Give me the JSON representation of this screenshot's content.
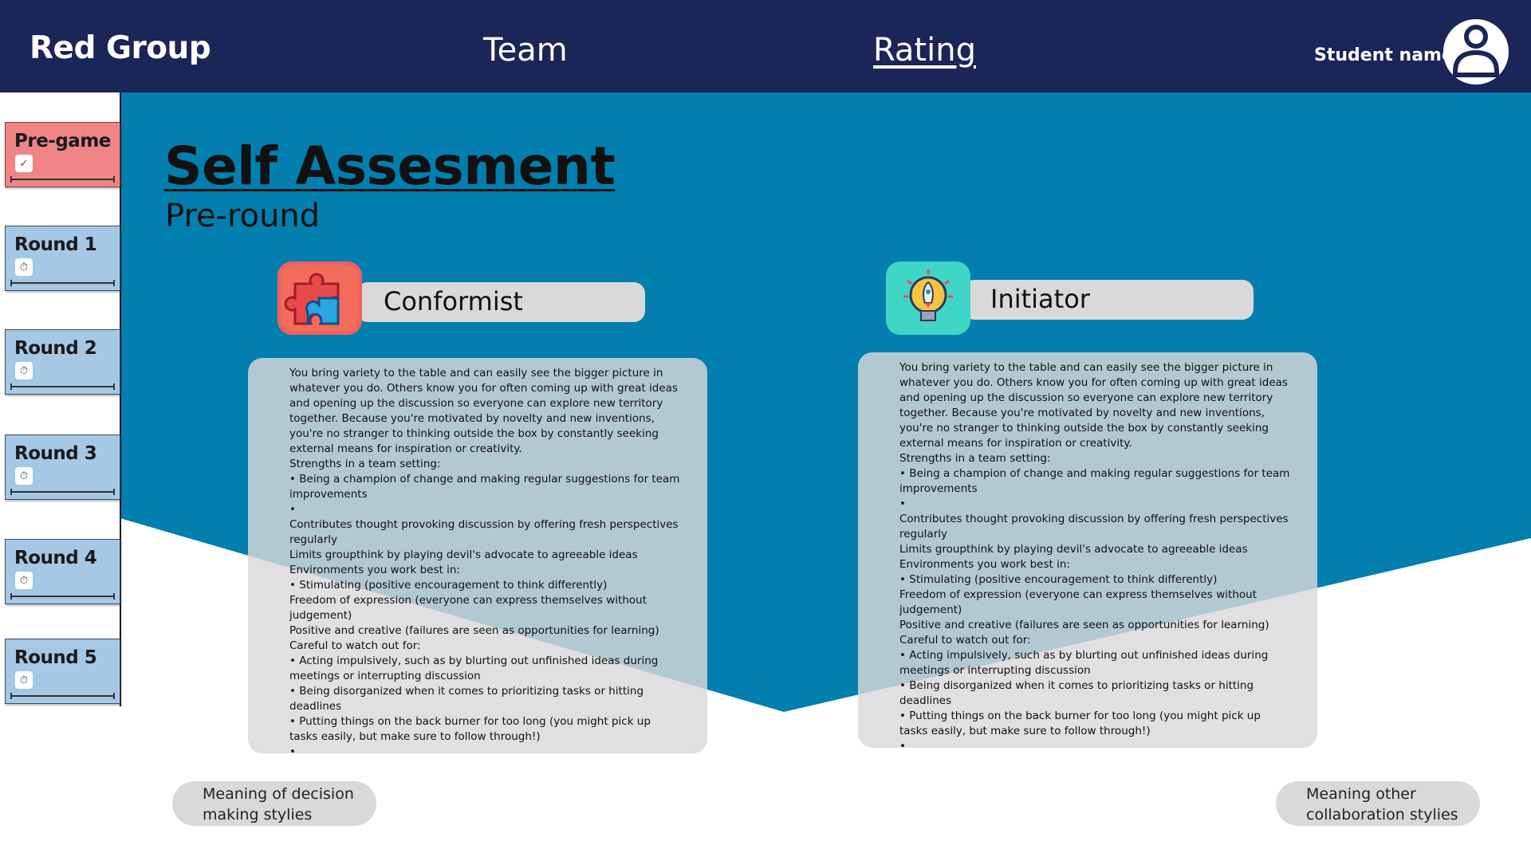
{
  "header": {
    "brand": "Red Group",
    "nav": [
      {
        "label": "Team"
      },
      {
        "label": "Rating"
      }
    ],
    "student_name": "Student name",
    "avatar_icon": "user-circle-icon"
  },
  "sidebar": {
    "items": [
      {
        "label": "Pre-game",
        "icon": "check-icon",
        "active": true
      },
      {
        "label": "Round 1",
        "icon": "timer-icon"
      },
      {
        "label": "Round 2",
        "icon": "timer-icon"
      },
      {
        "label": "Round 3",
        "icon": "timer-icon"
      },
      {
        "label": "Round 4",
        "icon": "timer-icon"
      },
      {
        "label": "Round 5",
        "icon": "timer-icon"
      }
    ]
  },
  "main": {
    "title": "Self Assesment",
    "subtitle": "Pre-round",
    "styles": [
      {
        "name": "Conformist",
        "icon": "puzzle-icon",
        "lines": [
          "You bring variety to the table and can easily see the bigger picture in whatever you do. Others know you for often coming up with great ideas and opening up the discussion so everyone can explore new territory together. Because you're motivated by novelty and new inventions, you're no stranger to thinking outside the box by constantly seeking external means for inspiration or creativity.",
          "Strengths in a team setting:",
          "• Being a champion of change and making regular suggestions for team improvements",
          "•",
          "Contributes thought provoking discussion by offering fresh perspectives regularly",
          "Limits groupthink by playing devil's advocate to agreeable ideas",
          "Environments you work best in:",
          "• Stimulating (positive encouragement to think differently)",
          "Freedom of expression (everyone can express themselves without judgement)",
          "Positive and creative (failures are seen as opportunities for learning)",
          "Careful to watch out for:",
          "• Acting impulsively, such as by blurting out unfinished ideas during meetings or interrupting discussion",
          "• Being disorganized when it comes to prioritizing tasks or hitting deadlines",
          "• Putting things on the back burner for too long (you might pick up tasks easily, but make sure to follow through!)",
          "•"
        ]
      },
      {
        "name": "Initiator",
        "icon": "rocket-bulb-icon",
        "lines": [
          "You bring variety to the table and can easily see the bigger picture in whatever you do. Others know you for often coming up with great ideas and opening up the discussion so everyone can explore new territory together. Because you're motivated by novelty and new inventions, you're no stranger to thinking outside the box by constantly seeking external means for inspiration or creativity.",
          "Strengths in a team setting:",
          "• Being a champion of change and making regular suggestions for team improvements",
          "•",
          "Contributes thought provoking discussion by offering fresh perspectives regularly",
          "Limits groupthink by playing devil's advocate to agreeable ideas",
          "Environments you work best in:",
          "• Stimulating (positive encouragement to think differently)",
          "Freedom of expression (everyone can express themselves without judgement)",
          "Positive and creative (failures are seen as opportunities for learning)",
          "Careful to watch out for:",
          "• Acting impulsively, such as by blurting out unfinished ideas during meetings or interrupting discussion",
          "• Being disorganized when it comes to prioritizing tasks or hitting deadlines",
          "• Putting things on the back burner for too long (you might pick up tasks easily, but make sure to follow through!)",
          "•"
        ]
      }
    ],
    "buttons": {
      "decision_styles": "Meaning of decision making stylies",
      "collab_styles": "Meaning other collaboration stylies"
    }
  },
  "colors": {
    "header_bg": "#1a2558",
    "main_bg": "#027fae",
    "active_round": "#ef8585",
    "inactive_round": "#a5c8e4",
    "pill_bg": "#d9d9d9"
  }
}
